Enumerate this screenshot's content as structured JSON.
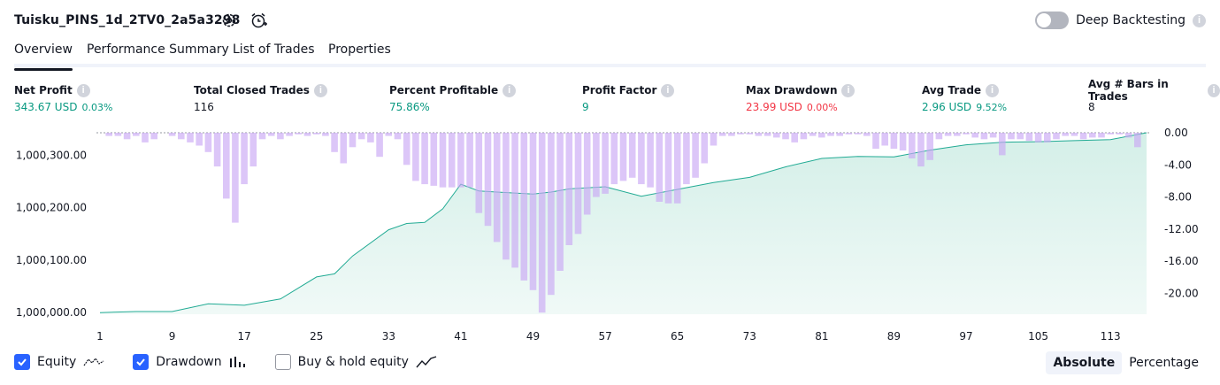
{
  "header": {
    "title": "Tuisku_PINS_1d_2TV0_2a5a3298",
    "deep_backtesting_label": "Deep Backtesting",
    "deep_backtesting_on": false
  },
  "tabs": [
    {
      "label": "Overview",
      "active": true
    },
    {
      "label": "Performance Summary",
      "active": false
    },
    {
      "label": "List of Trades",
      "active": false
    },
    {
      "label": "Properties",
      "active": false
    }
  ],
  "metrics": [
    {
      "label": "Net Profit",
      "value": "343.67 USD",
      "extra": "0.03%",
      "tone": "pos"
    },
    {
      "label": "Total Closed Trades",
      "value": "116",
      "extra": "",
      "tone": "neutral"
    },
    {
      "label": "Percent Profitable",
      "value": "75.86%",
      "extra": "",
      "tone": "pos"
    },
    {
      "label": "Profit Factor",
      "value": "9",
      "extra": "",
      "tone": "pos"
    },
    {
      "label": "Max Drawdown",
      "value": "23.99 USD",
      "extra": "0.00%",
      "tone": "neg"
    },
    {
      "label": "Avg Trade",
      "value": "2.96 USD",
      "extra": "9.52%",
      "tone": "pos"
    },
    {
      "label": "Avg # Bars in Trades",
      "value": "8",
      "extra": "",
      "tone": "neutral"
    }
  ],
  "info_glyph": "i",
  "colors": {
    "positive": "#089981",
    "negative": "#f23645",
    "equity_line": "#22ab94",
    "equity_fill": "#d4efe8",
    "drawdown_bar": "#c9a8f5",
    "accent": "#2962ff"
  },
  "chart_data": {
    "type": "area",
    "x_ticks": [
      "1",
      "9",
      "17",
      "25",
      "33",
      "41",
      "49",
      "57",
      "65",
      "73",
      "81",
      "89",
      "97",
      "105",
      "113"
    ],
    "left_axis": {
      "ticks": [
        "1,000,000.00",
        "1,000,100.00",
        "1,000,200.00",
        "1,000,300.00"
      ],
      "values": [
        1000000,
        1000100,
        1000200,
        1000300
      ],
      "range": [
        999997,
        1000343
      ]
    },
    "right_axis": {
      "ticks": [
        "0.00",
        "-4.00",
        "-8.00",
        "-12.00",
        "-16.00",
        "-20.00"
      ],
      "values": [
        0,
        -4,
        -8,
        -12,
        -16,
        -20
      ],
      "range": [
        -22.6,
        0
      ]
    },
    "series": [
      {
        "name": "Equity",
        "axis": "left",
        "x": [
          1,
          5,
          9,
          13,
          17,
          21,
          25,
          27,
          29,
          33,
          35,
          37,
          39,
          41,
          43,
          45,
          47,
          49,
          51,
          53,
          57,
          61,
          65,
          69,
          73,
          77,
          81,
          85,
          89,
          93,
          97,
          101,
          105,
          109,
          113,
          117
        ],
        "values": [
          1000000,
          1000002,
          1000002,
          1000017,
          1000014,
          1000026,
          1000068,
          1000074,
          1000108,
          1000158,
          1000170,
          1000172,
          1000198,
          1000245,
          1000232,
          1000230,
          1000228,
          1000226,
          1000230,
          1000236,
          1000240,
          1000222,
          1000235,
          1000248,
          1000258,
          1000278,
          1000294,
          1000298,
          1000297,
          1000310,
          1000320,
          1000325,
          1000326,
          1000328,
          1000330,
          1000343
        ]
      },
      {
        "name": "Drawdown",
        "axis": "right",
        "values": [
          0,
          -0.4,
          -0.4,
          -0.8,
          -0.4,
          -1.2,
          -0.8,
          0,
          -0.4,
          -0.8,
          -1.2,
          -1.6,
          -2.4,
          -4.2,
          -8.2,
          -11.2,
          -6.4,
          -4.2,
          -0.8,
          -0.4,
          -0.8,
          -0.4,
          -0.2,
          -0.4,
          -0.2,
          -0.4,
          -2.4,
          -3.8,
          -1.8,
          -0.8,
          -1.2,
          -3.0,
          -0.4,
          -0.8,
          -4.0,
          -6.0,
          -6.4,
          -6.6,
          -6.8,
          -6.8,
          -6.8,
          -6.8,
          -10.0,
          -11.6,
          -13.6,
          -15.8,
          -16.8,
          -18.4,
          -19.6,
          -22.4,
          -20.2,
          -17.2,
          -14.0,
          -12.6,
          -10.2,
          -8.0,
          -7.6,
          -6.4,
          -6.0,
          -5.6,
          -6.4,
          -6.8,
          -8.6,
          -8.8,
          -8.8,
          -6.4,
          -5.6,
          -3.8,
          -1.6,
          -0.4,
          -0.4,
          -0.2,
          -0.2,
          -0.4,
          -0.4,
          -0.6,
          -0.8,
          -1.2,
          -0.8,
          -0.4,
          -0.6,
          -0.4,
          -0.4,
          -0.2,
          -0.2,
          -0.4,
          -2.0,
          -1.6,
          -2.0,
          -2.2,
          -3.2,
          -4.2,
          -3.4,
          -0.8,
          -0.4,
          -0.4,
          -0.2,
          -0.6,
          -0.8,
          -0.6,
          -2.8,
          -0.8,
          -0.8,
          -1.0,
          -1.2,
          -1.2,
          -0.8,
          -0.4,
          -0.4,
          -0.8,
          -0.6,
          -0.6,
          -0.2,
          -0.2,
          -0.6,
          -1.8
        ]
      }
    ],
    "grid": false
  },
  "legend": {
    "equity_label": "Equity",
    "equity_checked": true,
    "drawdown_label": "Drawdown",
    "drawdown_checked": true,
    "buyhold_label": "Buy & hold equity",
    "buyhold_checked": false
  },
  "mode": {
    "absolute_label": "Absolute",
    "percentage_label": "Percentage",
    "selected": "absolute"
  }
}
